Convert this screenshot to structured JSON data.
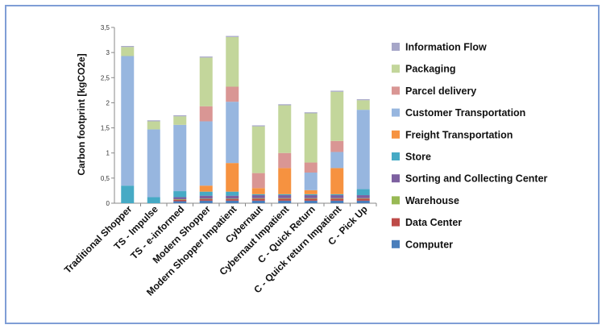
{
  "chart_data": {
    "type": "bar",
    "stacked": true,
    "title": "",
    "xlabel": "",
    "ylabel": "Carbon footprint [kgCO2e]",
    "ylim": [
      0,
      3.5
    ],
    "yticks": [
      "0",
      "0,5",
      "1",
      "1,5",
      "2",
      "2,5",
      "3",
      "3,5"
    ],
    "grid": false,
    "legend_position": "right",
    "categories": [
      "Traditional Shopper",
      "TS - Impulse",
      "TS - e-informed",
      "Modern Shopper",
      "Modern Shopper Impatient",
      "Cybernaut",
      "Cybernaut Impatient",
      "C - Quick Return",
      "C - Quick return Impatient",
      "C - Pick Up"
    ],
    "series": [
      {
        "name": "Computer",
        "color": "#4a7ebb",
        "values": [
          0,
          0,
          0.04,
          0.05,
          0.05,
          0.05,
          0.05,
          0.05,
          0.05,
          0.05
        ]
      },
      {
        "name": "Data Center",
        "color": "#be4b48",
        "values": [
          0,
          0,
          0.03,
          0.03,
          0.03,
          0.04,
          0.04,
          0.04,
          0.04,
          0.04
        ]
      },
      {
        "name": "Warehouse",
        "color": "#98b954",
        "values": [
          0,
          0,
          0.01,
          0.01,
          0.01,
          0.01,
          0.01,
          0.01,
          0.01,
          0.01
        ]
      },
      {
        "name": "Sorting and Collecting Center",
        "color": "#7d60a0",
        "values": [
          0,
          0,
          0.04,
          0.06,
          0.06,
          0.06,
          0.06,
          0.06,
          0.06,
          0.06
        ]
      },
      {
        "name": "Store",
        "color": "#46aac5",
        "values": [
          0.35,
          0.12,
          0.12,
          0.08,
          0.08,
          0.02,
          0.02,
          0.02,
          0.02,
          0.12
        ]
      },
      {
        "name": "Freight Transportation",
        "color": "#f69240",
        "values": [
          0,
          0,
          0,
          0.12,
          0.57,
          0.12,
          0.52,
          0.08,
          0.52,
          0
        ]
      },
      {
        "name": "Customer Transportation",
        "color": "#97b6df",
        "values": [
          2.58,
          1.35,
          1.32,
          1.28,
          1.22,
          0,
          0,
          0.35,
          0.32,
          1.58
        ]
      },
      {
        "name": "Parcel delivery",
        "color": "#d99694",
        "values": [
          0,
          0,
          0,
          0.3,
          0.3,
          0.3,
          0.3,
          0.2,
          0.22,
          0
        ]
      },
      {
        "name": "Packaging",
        "color": "#c3d69b",
        "values": [
          0.18,
          0.16,
          0.17,
          0.97,
          0.99,
          0.93,
          0.95,
          0.98,
          0.98,
          0.19
        ]
      },
      {
        "name": "Information Flow",
        "color": "#a6a6c8",
        "values": [
          0.02,
          0.02,
          0.02,
          0.02,
          0.02,
          0.02,
          0.02,
          0.02,
          0.02,
          0.02
        ]
      }
    ]
  }
}
